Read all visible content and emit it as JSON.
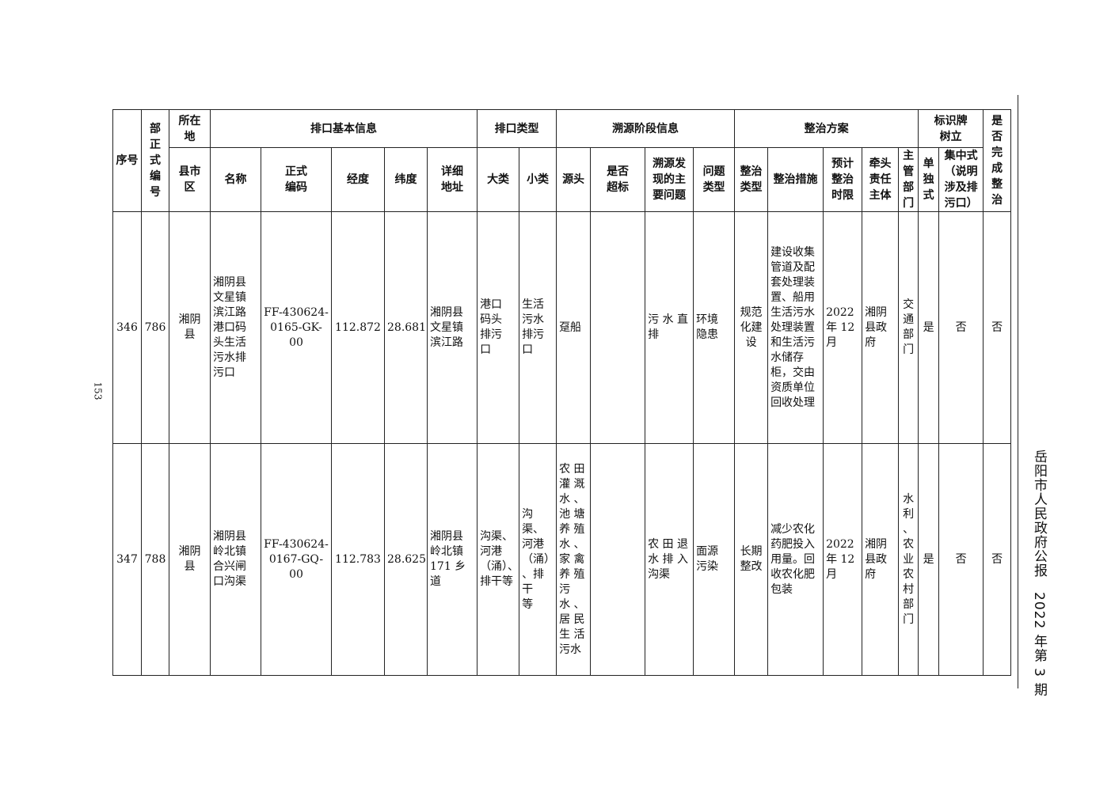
{
  "page_number": "153",
  "publication": "岳阳市人民政府公报　2022 年第 3 期",
  "header_top": {
    "seq": "序号",
    "dept_code": "部\n正\n式\n编\n号",
    "location": "所在\n地",
    "basic_info": "排口基本信息",
    "outlet_type": "排口类型",
    "trace": "溯源阶段信息",
    "plan": "整治方案",
    "sign": "标识牌\n树立",
    "done": "是\n否\n完\n成\n整\n治"
  },
  "header_sub": [
    "县市\n区",
    "名称",
    "正式\n编码",
    "经度",
    "纬度",
    "详细\n地址",
    "大类",
    "小类",
    "源头",
    "是否\n超标",
    "溯源发\n现的主\n要问题",
    "问题\n类型",
    "整治\n类型",
    "整治措施",
    "预计\n整治\n时限",
    "牵头\n责任\n主体",
    "主\n管\n部\n门",
    "单\n独\n式",
    "集中式\n（说明\n涉及排\n污口）"
  ],
  "rows": [
    [
      "346",
      "786",
      "湘阴\n县",
      "湘阴县\n文星镇\n滨江路\n港口码\n头生活\n污水排\n污口",
      "FF-430624-\n0165-GK-00",
      "112.872",
      "28.681",
      "湘阴县\n文星镇\n滨江路",
      "港口\n码头\n排污\n口",
      "生活\n污水\n排污\n口",
      "趸船",
      "",
      "污 水 直\n排",
      "环境\n隐患",
      "规范\n化建\n设",
      "建设收集\n管道及配\n套处理装\n置、船用\n生活污水\n处理装置\n和生活污\n水储存\n柜，交由\n资质单位\n回收处理",
      "2022\n年 12\n月",
      "湘阴\n县政\n府",
      "交\n通\n部\n门",
      "是",
      "否",
      "否"
    ],
    [
      "347",
      "788",
      "湘阴\n县",
      "湘阴县\n岭北镇\n合兴闸\n口沟渠",
      "FF-430624-\n0167-GQ-00",
      "112.783",
      "28.625",
      "湘阴县\n岭北镇\n171 乡\n道",
      "沟渠、\n河港\n（涌）、\n排干等",
      "沟渠、\n河港\n（涌）\n、排干\n等",
      "农 田\n灌 溉\n水 、\n池 塘\n养 殖\n水 、\n家 禽\n养 殖\n污\n水 、\n居 民\n生 活\n污水",
      "",
      "农 田 退\n水 排 入\n沟渠",
      "面源\n污染",
      "长期\n整改",
      "减少农化\n药肥投入\n用量。回\n收农化肥\n包装",
      "2022\n年 12\n月",
      "湘阴\n县政\n府",
      "水\n利\n、\n农\n业\n农\n村\n部\n门",
      "是",
      "否",
      "否"
    ]
  ]
}
